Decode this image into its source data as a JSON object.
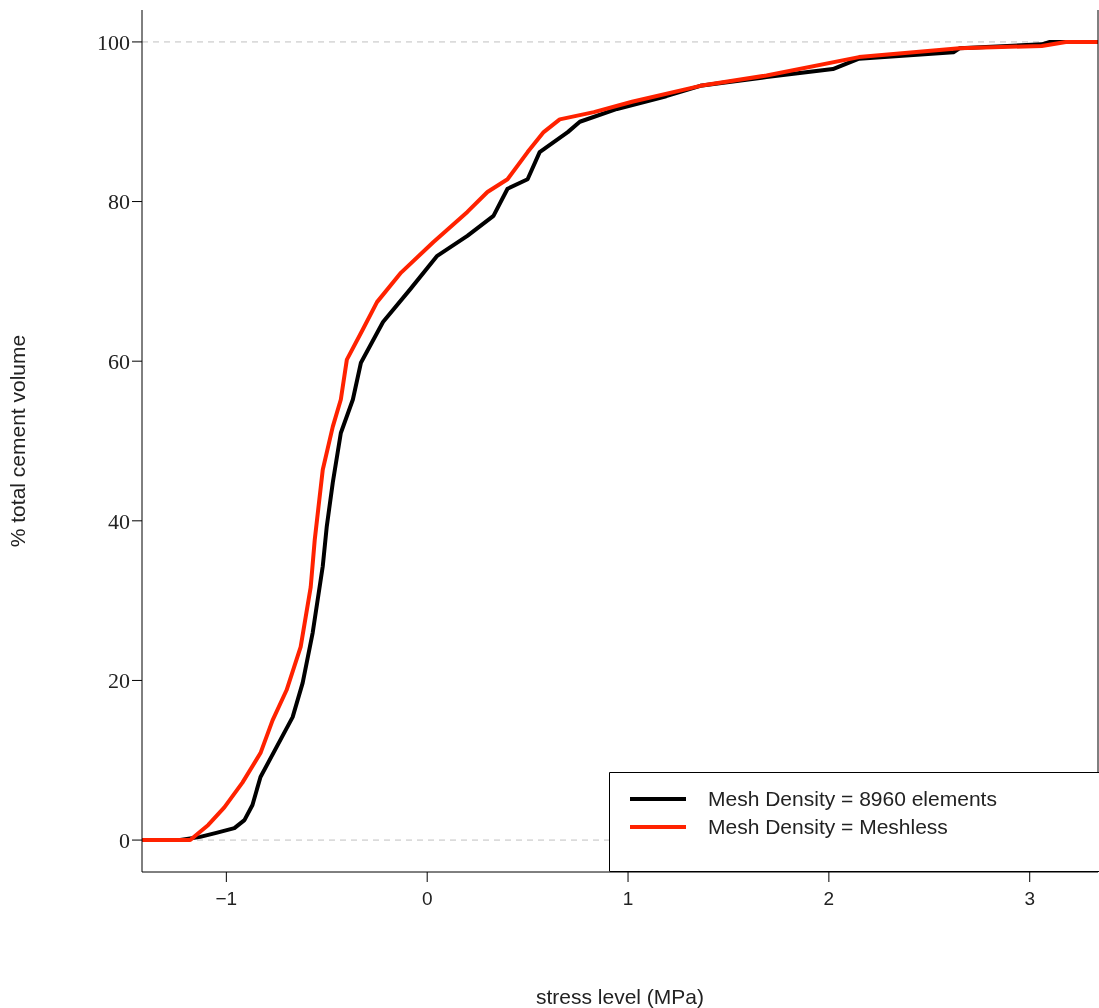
{
  "chart_data": {
    "type": "line",
    "xlabel": "stress level (MPa)",
    "ylabel": "% total cement volume",
    "xlim": [
      -1.42,
      3.34
    ],
    "ylim": [
      -4,
      104
    ],
    "xticks": [
      -1,
      0,
      1,
      2,
      3
    ],
    "yticks": [
      0,
      20,
      40,
      60,
      80,
      100
    ],
    "legend": "bottom right",
    "marker": "none",
    "line_style": "solid",
    "ref_lines": [
      {
        "axis": "y",
        "value": 0,
        "color": "#c0c0c0",
        "line_style": "dashed"
      },
      {
        "axis": "y",
        "value": 100,
        "color": "#c0c0c0",
        "line_style": "dashed"
      }
    ],
    "series": [
      {
        "name": "Mesh Density = 8960 elements",
        "color": "#000000",
        "x": [
          -1.42,
          -1.23,
          -1.13,
          -1.05,
          -0.96,
          -0.91,
          -0.87,
          -0.83,
          -0.67,
          -0.62,
          -0.57,
          -0.52,
          -0.5,
          -0.47,
          -0.43,
          -0.37,
          -0.33,
          -0.22,
          -0.085,
          0.05,
          0.2,
          0.33,
          0.4,
          0.5,
          0.56,
          0.7,
          0.76,
          0.945,
          1.19,
          1.36,
          1.69,
          2.02,
          2.15,
          2.62,
          2.65,
          3.06,
          3.1,
          3.34
        ],
        "values": [
          0,
          0,
          0.4,
          0.9,
          1.5,
          2.5,
          4.4,
          7.9,
          15.4,
          19.7,
          26,
          34.3,
          39.3,
          44.8,
          51,
          55.2,
          59.8,
          64.9,
          69,
          73.2,
          75.7,
          78.2,
          81.6,
          82.8,
          86.2,
          88.7,
          90,
          91.6,
          93.2,
          94.5,
          95.6,
          96.6,
          97.9,
          98.7,
          99.2,
          99.7,
          100,
          100
        ]
      },
      {
        "name": "Mesh Density = Meshless",
        "color": "#ff2200",
        "x": [
          -1.42,
          -1.23,
          -1.18,
          -1.09,
          -1.01,
          -0.92,
          -0.83,
          -0.77,
          -0.7,
          -0.63,
          -0.58,
          -0.56,
          -0.52,
          -0.47,
          -0.43,
          -0.4,
          -0.32,
          -0.25,
          -0.13,
          0.03,
          0.2,
          0.3,
          0.4,
          0.5,
          0.58,
          0.66,
          0.83,
          1.02,
          1.36,
          1.69,
          2.15,
          2.65,
          3.06,
          3.18,
          3.34
        ],
        "values": [
          0,
          0,
          0,
          1.9,
          4.1,
          7.2,
          10.9,
          15,
          18.8,
          24.2,
          31.7,
          37.6,
          46.4,
          51.8,
          55.2,
          60.2,
          64,
          67.4,
          71.1,
          74.9,
          78.7,
          81.2,
          82.8,
          86.2,
          88.7,
          90.3,
          91.2,
          92.5,
          94.5,
          95.8,
          98.1,
          99.2,
          99.5,
          100,
          100
        ]
      }
    ]
  }
}
